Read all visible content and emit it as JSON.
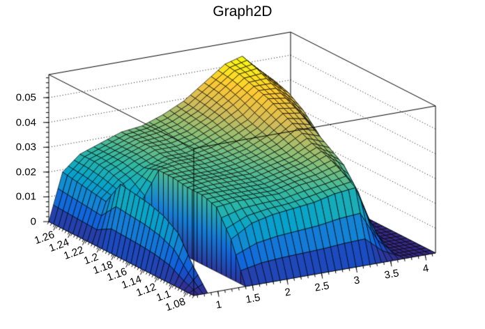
{
  "chart_data": {
    "type": "surface3d",
    "title": "Graph2D",
    "legend": null,
    "grid_lines": "dotted z-level lines on back walls",
    "x_axis": {
      "min": 0.65,
      "max": 4.15,
      "minor_step": 0.1,
      "ticks": [
        {
          "value": 1,
          "label": "1"
        },
        {
          "value": 1.5,
          "label": "1.5"
        },
        {
          "value": 2,
          "label": "2"
        },
        {
          "value": 2.5,
          "label": "2.5"
        },
        {
          "value": 3,
          "label": "3"
        },
        {
          "value": 3.5,
          "label": "3.5"
        },
        {
          "value": 4,
          "label": "4"
        }
      ]
    },
    "y_axis": {
      "min": 1.07,
      "max": 1.27,
      "minor_step": 0.004,
      "ticks": [
        {
          "value": 1.08,
          "label": "1.08"
        },
        {
          "value": 1.1,
          "label": "1.1"
        },
        {
          "value": 1.12,
          "label": "1.12"
        },
        {
          "value": 1.14,
          "label": "1.14"
        },
        {
          "value": 1.16,
          "label": "1.16"
        },
        {
          "value": 1.18,
          "label": "1.18"
        },
        {
          "value": 1.2,
          "label": "1.2"
        },
        {
          "value": 1.22,
          "label": "1.22"
        },
        {
          "value": 1.24,
          "label": "1.24"
        },
        {
          "value": 1.26,
          "label": "1.26"
        }
      ]
    },
    "z_axis": {
      "min": 0,
      "max": 0.0593,
      "color_max": 0.053,
      "minor_step": 0.002,
      "ticks": [
        {
          "value": 0,
          "label": "0"
        },
        {
          "value": 0.01,
          "label": "0.01"
        },
        {
          "value": 0.02,
          "label": "0.02"
        },
        {
          "value": 0.03,
          "label": "0.03"
        },
        {
          "value": 0.04,
          "label": "0.04"
        },
        {
          "value": 0.05,
          "label": "0.05"
        }
      ]
    },
    "palette": [
      "#352a87",
      "#0f5cdd",
      "#1481d6",
      "#06a4ca",
      "#2eb7a4",
      "#87bf77",
      "#d1bb59",
      "#fec832",
      "#f9fb0e"
    ],
    "colors": {
      "background": "#ffffff",
      "frame": "#000000",
      "mesh": "#000000",
      "grid_dots": "#000000",
      "text": "#000000"
    },
    "grid": {
      "x": [
        0.65,
        0.85,
        1.1,
        1.4,
        1.7,
        2.0,
        2.3,
        2.6,
        2.9,
        3.2,
        3.45,
        3.7,
        3.9,
        4.15
      ],
      "y": [
        1.07,
        1.09,
        1.11,
        1.13,
        1.15,
        1.17,
        1.19,
        1.21,
        1.23,
        1.25,
        1.27
      ],
      "z": [
        [
          0,
          0,
          0,
          0,
          0,
          0,
          0,
          0,
          0,
          0,
          0,
          0,
          0,
          0
        ],
        [
          0,
          0.008,
          null,
          0.016,
          0.021,
          0.023,
          0.024,
          0.025,
          0.027,
          0.028,
          0.01,
          0,
          0,
          0
        ],
        [
          0,
          0.018,
          null,
          0.026,
          0.027,
          0.027,
          0.027,
          0.029,
          0.03,
          0.032,
          0.022,
          0,
          0,
          0
        ],
        [
          0,
          0.022,
          null,
          0.028,
          0.028,
          0.028,
          0.028,
          0.03,
          0.032,
          0.035,
          0.03,
          0.006,
          0,
          0
        ],
        [
          0,
          0.024,
          null,
          0.028,
          0.029,
          0.029,
          0.029,
          0.031,
          0.033,
          0.037,
          0.034,
          0.016,
          0,
          0
        ],
        [
          0,
          0.025,
          null,
          0.029,
          0.029,
          0.029,
          0.03,
          0.032,
          0.035,
          0.04,
          0.038,
          0.026,
          0.003,
          0
        ],
        [
          0,
          0.026,
          0.015,
          0.029,
          0.03,
          0.03,
          0.031,
          0.033,
          0.037,
          0.043,
          0.042,
          0.033,
          0.01,
          0
        ],
        [
          0,
          0.016,
          0.022,
          0.027,
          0.03,
          0.03,
          0.032,
          0.035,
          0.039,
          0.046,
          0.045,
          0.039,
          0.021,
          null
        ],
        [
          0,
          0.017,
          0.024,
          0.028,
          0.031,
          0.031,
          0.033,
          0.037,
          0.042,
          0.048,
          0.048,
          0.043,
          0.027,
          null
        ],
        [
          0,
          0.018,
          0.025,
          0.028,
          0.031,
          0.032,
          0.034,
          0.038,
          0.044,
          0.05,
          0.051,
          0.045,
          0.029,
          null
        ],
        [
          0,
          0.019,
          0.025,
          0.028,
          0.031,
          0.032,
          0.035,
          0.039,
          0.045,
          0.051,
          0.053,
          0.046,
          0.03,
          null
        ]
      ]
    }
  }
}
